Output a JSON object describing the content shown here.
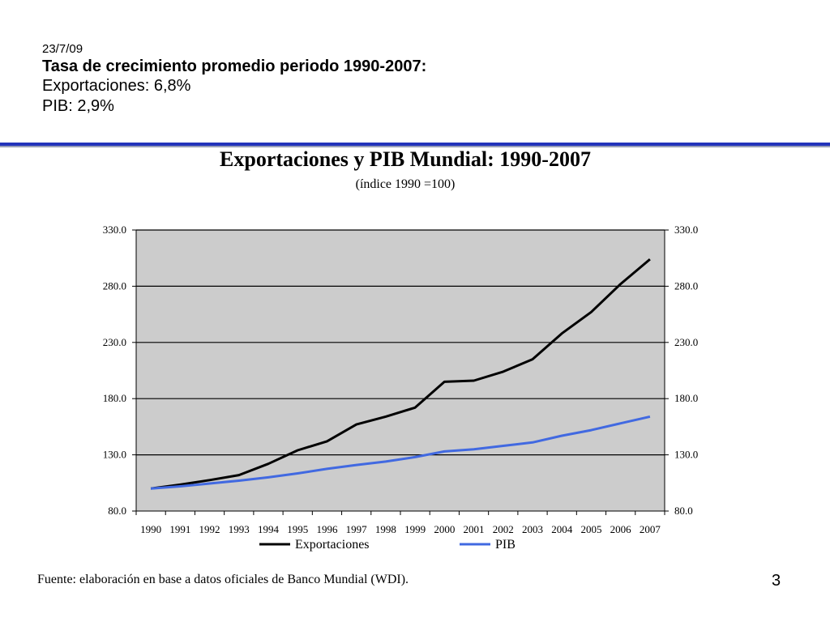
{
  "slide": {
    "date": "23/7/09",
    "headline": "Tasa de crecimiento promedio periodo 1990-2007:",
    "stat_exports": "Exportaciones: 6,8%",
    "stat_gdp": "PIB: 2,9%",
    "source": "Fuente: elaboración en base a datos oficiales de Banco Mundial (WDI).",
    "page_number": "3"
  },
  "colors": {
    "accent_rule": "#2233bb",
    "plot_bg": "#cccccc"
  },
  "chart_data": {
    "type": "line",
    "title": "Exportaciones y PIB Mundial: 1990-2007",
    "subtitle": "(índice 1990 =100)",
    "xlabel": "",
    "ylabel": "",
    "x": [
      "1990",
      "1991",
      "1992",
      "1993",
      "1994",
      "1995",
      "1996",
      "1997",
      "1998",
      "1999",
      "2000",
      "2001",
      "2002",
      "2003",
      "2004",
      "2005",
      "2006",
      "2007"
    ],
    "ylim": [
      80,
      330
    ],
    "yticks": [
      "80.0",
      "130.0",
      "180.0",
      "230.0",
      "280.0",
      "330.0"
    ],
    "y_axis_secondary": true,
    "grid": "horizontal",
    "legend_position": "bottom",
    "series": [
      {
        "name": "Exportaciones",
        "color": "#000000",
        "values": [
          100,
          103.5,
          107.5,
          112,
          122,
          134,
          142,
          157,
          164,
          172,
          195,
          196,
          204,
          215,
          238,
          257,
          282,
          304
        ]
      },
      {
        "name": "PIB",
        "color": "#4169e1",
        "values": [
          100,
          102,
          104.5,
          107,
          110,
          113.5,
          117.5,
          121,
          124,
          128,
          133,
          135,
          138,
          141,
          147,
          152,
          158,
          164
        ]
      }
    ]
  }
}
